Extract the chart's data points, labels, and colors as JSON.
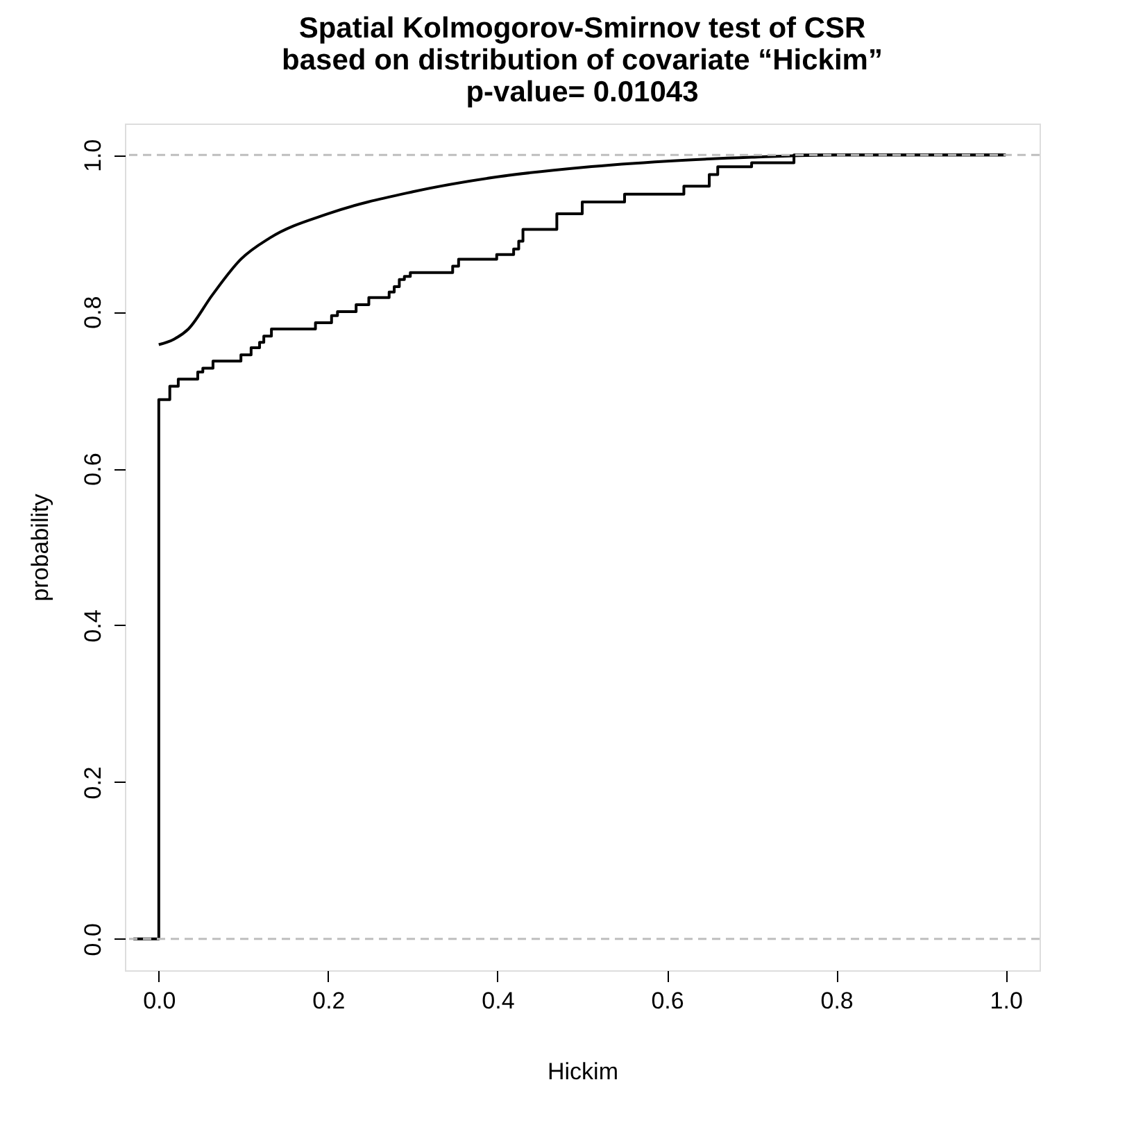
{
  "chart_data": {
    "type": "line",
    "title": "Spatial Kolmogorov-Smirnov test of CSR\nbased on distribution of covariate “Hickim”\np-value= 0.01043",
    "xlabel": "Hickim",
    "ylabel": "probability",
    "xlim": [
      -0.04,
      1.04
    ],
    "ylim": [
      -0.04,
      1.04
    ],
    "xticks": [
      {
        "value": 0,
        "label": "0.0"
      },
      {
        "value": 0.2,
        "label": "0.2"
      },
      {
        "value": 0.4,
        "label": "0.4"
      },
      {
        "value": 0.6,
        "label": "0.6"
      },
      {
        "value": 0.8,
        "label": "0.8"
      },
      {
        "value": 1,
        "label": "1.0"
      }
    ],
    "yticks": [
      {
        "value": 0,
        "label": "0.0"
      },
      {
        "value": 0.2,
        "label": "0.2"
      },
      {
        "value": 0.4,
        "label": "0.4"
      },
      {
        "value": 0.6,
        "label": "0.6"
      },
      {
        "value": 0.8,
        "label": "0.8"
      },
      {
        "value": 1,
        "label": "1.0"
      }
    ],
    "grid": false,
    "line_style": "solid",
    "ref_lines": [
      {
        "axis": "y",
        "value": 0,
        "color": "#bebebe",
        "line_style": "dashed"
      },
      {
        "axis": "y",
        "value": 1,
        "color": "#bebebe",
        "line_style": "dashed"
      }
    ],
    "series": [
      {
        "type": "step",
        "color": "#000000",
        "x": [
          -0.03,
          0,
          0.013,
          0.023,
          0.046,
          0.052,
          0.064,
          0.097,
          0.109,
          0.119,
          0.124,
          0.133,
          0.185,
          0.204,
          0.211,
          0.233,
          0.248,
          0.272,
          0.278,
          0.284,
          0.29,
          0.297,
          0.347,
          0.354,
          0.399,
          0.419,
          0.425,
          0.43,
          0.47,
          0.5,
          0.55,
          0.62,
          0.65,
          0.66,
          0.7,
          0.75,
          1.0
        ],
        "values": [
          0,
          0.688,
          0.705,
          0.714,
          0.723,
          0.728,
          0.737,
          0.745,
          0.754,
          0.761,
          0.769,
          0.778,
          0.786,
          0.795,
          0.8,
          0.809,
          0.818,
          0.825,
          0.832,
          0.841,
          0.845,
          0.85,
          0.858,
          0.867,
          0.873,
          0.88,
          0.89,
          0.905,
          0.925,
          0.94,
          0.95,
          0.96,
          0.975,
          0.985,
          0.99,
          1.0,
          1.0
        ]
      },
      {
        "color": "#000000",
        "x": [
          0,
          0.018,
          0.035,
          0.063,
          0.097,
          0.131,
          0.2,
          0.3,
          0.4,
          0.5,
          0.6,
          0.7,
          0.8,
          1.0
        ],
        "values": [
          0.758,
          0.765,
          0.778,
          0.821,
          0.867,
          0.894,
          0.925,
          0.953,
          0.972,
          0.984,
          0.992,
          0.997,
          1.0,
          1.0
        ]
      }
    ]
  }
}
